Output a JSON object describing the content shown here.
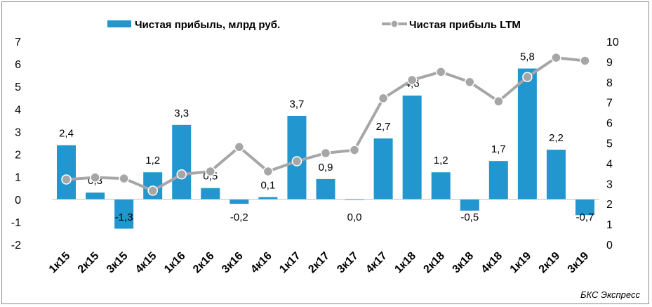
{
  "chart_data": {
    "type": "bar",
    "categories": [
      "1к15",
      "2к15",
      "3к15",
      "4к15",
      "1к16",
      "2к16",
      "3к16",
      "4к16",
      "1к17",
      "2к17",
      "3к17",
      "4к17",
      "1к18",
      "2к18",
      "3к18",
      "4к18",
      "1к19",
      "2к19",
      "3к19"
    ],
    "series": [
      {
        "name": "Чистая прибыль, млрд руб.",
        "type": "bar",
        "axis": "left",
        "color": "#2196cf",
        "values": [
          2.4,
          0.3,
          -1.3,
          1.2,
          3.3,
          0.5,
          -0.2,
          0.1,
          3.7,
          0.9,
          0.0,
          2.7,
          4.6,
          1.2,
          -0.5,
          1.7,
          5.8,
          2.2,
          -0.7
        ],
        "labels": [
          "2,4",
          "0,3",
          "-1,3",
          "1,2",
          "3,3",
          "0,5",
          "-0,2",
          "0,1",
          "3,7",
          "0,9",
          "0,0",
          "2,7",
          "4,6",
          "1,2",
          "-0,5",
          "1,7",
          "5,8",
          "2,2",
          "-0,7"
        ]
      },
      {
        "name": "Чистая прибыль LTM",
        "type": "line",
        "axis": "right",
        "color": "#a6a6a6",
        "values": [
          3.2,
          3.3,
          3.25,
          2.65,
          3.45,
          3.6,
          4.8,
          3.6,
          4.1,
          4.5,
          4.65,
          7.2,
          8.1,
          8.5,
          8.0,
          7.05,
          8.25,
          9.2,
          9.05
        ]
      }
    ],
    "y_left": {
      "ylim": [
        -2,
        7
      ],
      "ticks": [
        "-2",
        "-1",
        "0",
        "1",
        "2",
        "3",
        "4",
        "5",
        "6",
        "7"
      ]
    },
    "y_right": {
      "ylim": [
        0,
        10
      ],
      "ticks": [
        "0",
        "1",
        "2",
        "3",
        "4",
        "5",
        "6",
        "7",
        "8",
        "9",
        "10"
      ]
    },
    "legend_position": "top",
    "grid": false,
    "source": "БКС Экспресс"
  }
}
